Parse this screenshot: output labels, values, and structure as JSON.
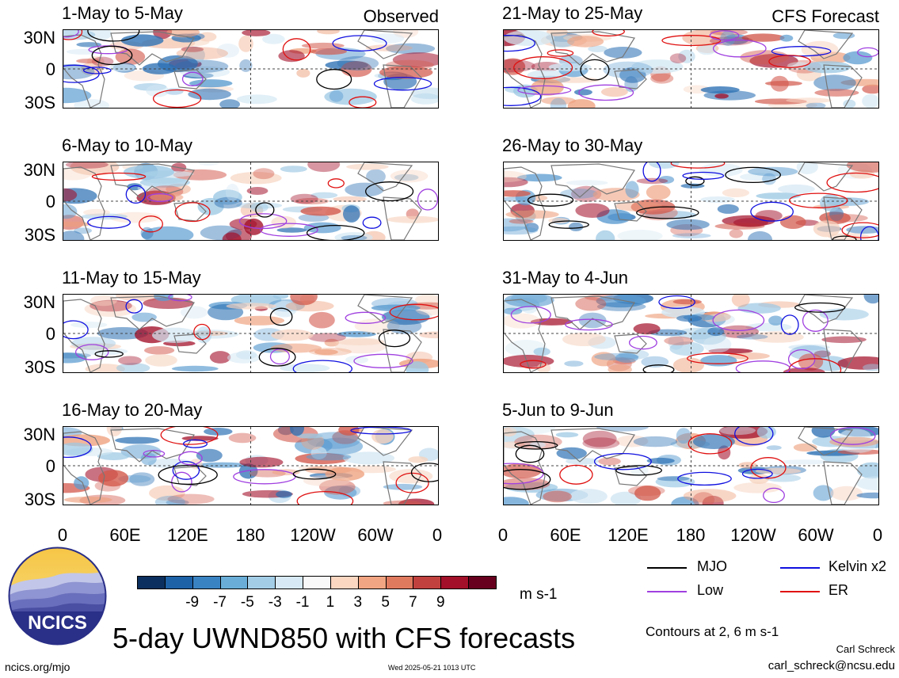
{
  "panels": [
    {
      "title": "1-May to 5-May",
      "tag": "Observed"
    },
    {
      "title": "21-May to 25-May",
      "tag": "CFS Forecast"
    },
    {
      "title": "6-May to 10-May",
      "tag": ""
    },
    {
      "title": "26-May to 30-May",
      "tag": ""
    },
    {
      "title": "11-May to 15-May",
      "tag": ""
    },
    {
      "title": "31-May to 4-Jun",
      "tag": ""
    },
    {
      "title": "16-May to 20-May",
      "tag": ""
    },
    {
      "title": "5-Jun to 9-Jun",
      "tag": ""
    }
  ],
  "lat_ticks": [
    "30N",
    "0",
    "30S"
  ],
  "lon_ticks": [
    "0",
    "60E",
    "120E",
    "180",
    "120W",
    "60W",
    "0"
  ],
  "colorbar": {
    "colors": [
      "#0b2f5e",
      "#1d62a7",
      "#3a83c2",
      "#6aaed8",
      "#a3cde6",
      "#d6e9f4",
      "#f8f8f8",
      "#fbd6c1",
      "#f2a582",
      "#e07a5f",
      "#c0413e",
      "#a3102a",
      "#67001f"
    ],
    "labels": [
      "-9",
      "-7",
      "-5",
      "-3",
      "-1",
      "1",
      "3",
      "5",
      "7",
      "9"
    ],
    "units": "m s-1"
  },
  "legend": [
    {
      "label": "MJO",
      "color": "#000000"
    },
    {
      "label": "Kelvin x2",
      "color": "#1010e0"
    },
    {
      "label": "Low",
      "color": "#a040e0"
    },
    {
      "label": "ER",
      "color": "#e01010"
    }
  ],
  "logo": {
    "text": "NCICS"
  },
  "main_title": "5-day UWND850 with CFS forecasts",
  "contours_note": "Contours at 2, 6 m s-1",
  "author": "Carl Schreck",
  "email": "carl_schreck@ncsu.edu",
  "website": "ncics.org/mjo",
  "timestamp": "Wed 2025-05-21 1013 UTC"
}
